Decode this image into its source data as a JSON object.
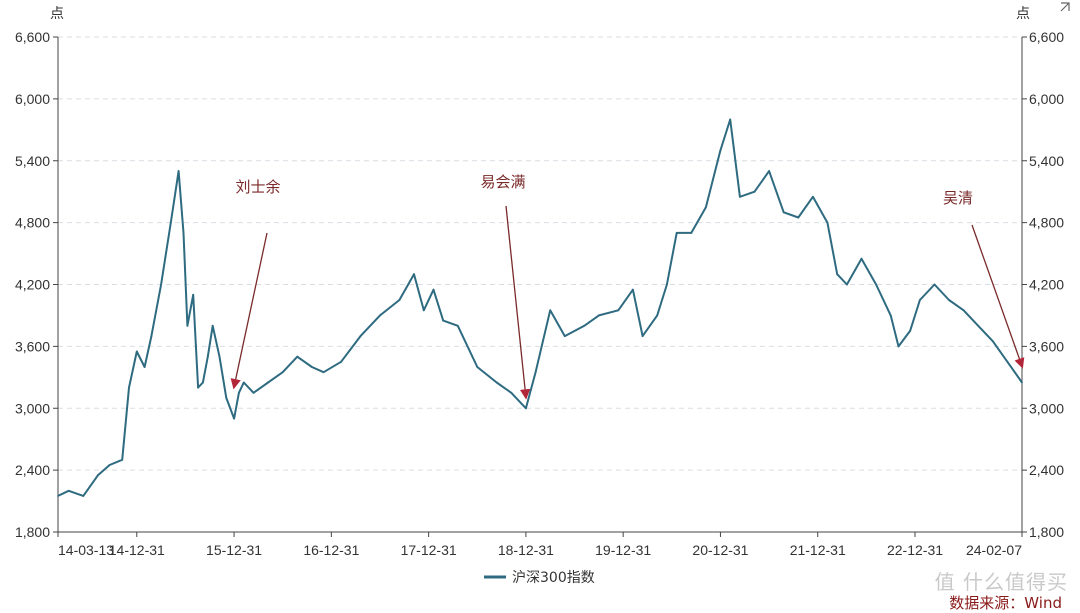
{
  "chart_data": {
    "type": "line",
    "y_unit_left": "点",
    "y_unit_right": "点",
    "ylim": [
      1800,
      6600
    ],
    "yticks": [
      "1,800",
      "2,400",
      "3,000",
      "3,600",
      "4,200",
      "4,800",
      "5,400",
      "6,000",
      "6,600"
    ],
    "yvalues": [
      1800,
      2400,
      3000,
      3600,
      4200,
      4800,
      5400,
      6000,
      6600
    ],
    "xticks": [
      "14-03-13",
      "14-12-31",
      "15-12-31",
      "16-12-31",
      "17-12-31",
      "18-12-31",
      "19-12-31",
      "20-12-31",
      "21-12-31",
      "22-12-31",
      "24-02-07"
    ],
    "xtick_years": [
      2014.19,
      2015.0,
      2016.0,
      2017.0,
      2018.0,
      2019.0,
      2020.0,
      2021.0,
      2022.0,
      2023.0,
      2024.1
    ],
    "grid": true,
    "legend_position": "bottom-center",
    "series": [
      {
        "name": "沪深300指数",
        "color": "#2e6b80",
        "x": [
          2014.19,
          2014.3,
          2014.45,
          2014.6,
          2014.72,
          2014.85,
          2014.92,
          2015.0,
          2015.08,
          2015.15,
          2015.25,
          2015.35,
          2015.43,
          2015.48,
          2015.52,
          2015.58,
          2015.63,
          2015.68,
          2015.73,
          2015.78,
          2015.85,
          2015.92,
          2016.0,
          2016.05,
          2016.1,
          2016.2,
          2016.35,
          2016.5,
          2016.65,
          2016.8,
          2016.92,
          2017.1,
          2017.3,
          2017.5,
          2017.7,
          2017.85,
          2017.95,
          2018.05,
          2018.15,
          2018.3,
          2018.5,
          2018.7,
          2018.85,
          2019.0,
          2019.1,
          2019.25,
          2019.4,
          2019.6,
          2019.75,
          2019.95,
          2020.1,
          2020.2,
          2020.35,
          2020.45,
          2020.55,
          2020.7,
          2020.85,
          2021.0,
          2021.1,
          2021.2,
          2021.35,
          2021.5,
          2021.65,
          2021.8,
          2021.95,
          2022.1,
          2022.2,
          2022.3,
          2022.45,
          2022.6,
          2022.75,
          2022.83,
          2022.95,
          2023.05,
          2023.2,
          2023.35,
          2023.5,
          2023.65,
          2023.8,
          2023.95,
          2024.1
        ],
        "y": [
          2150,
          2200,
          2150,
          2350,
          2450,
          2500,
          3200,
          3550,
          3400,
          3700,
          4200,
          4800,
          5300,
          4700,
          3800,
          4100,
          3200,
          3250,
          3500,
          3800,
          3500,
          3100,
          2900,
          3150,
          3250,
          3150,
          3250,
          3350,
          3500,
          3400,
          3350,
          3450,
          3700,
          3900,
          4050,
          4300,
          3950,
          4150,
          3850,
          3800,
          3400,
          3250,
          3150,
          3000,
          3350,
          3950,
          3700,
          3800,
          3900,
          3950,
          4150,
          3700,
          3900,
          4200,
          4700,
          4700,
          4950,
          5500,
          5800,
          5050,
          5100,
          5300,
          4900,
          4850,
          5050,
          4800,
          4300,
          4200,
          4450,
          4200,
          3900,
          3600,
          3750,
          4050,
          4200,
          4050,
          3950,
          3800,
          3650,
          3450,
          3250
        ]
      }
    ],
    "annotations": [
      {
        "label": "刘士余",
        "date": 2016.0,
        "value": 3150
      },
      {
        "label": "易会满",
        "date": 2019.0,
        "value": 3050
      },
      {
        "label": "吴清",
        "date": 2024.1,
        "value": 3350
      }
    ]
  },
  "source": "数据来源：Wind",
  "watermark": "值 什么值得买"
}
